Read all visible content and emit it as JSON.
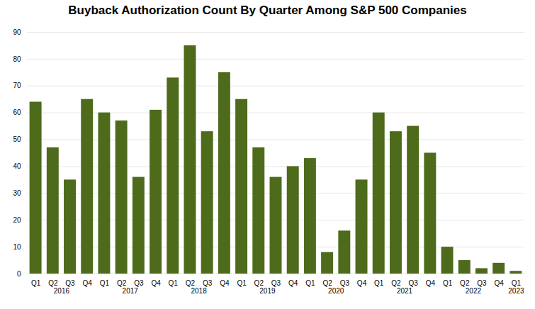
{
  "chart_data": {
    "type": "bar",
    "title": "Buyback Authorization Count By Quarter Among S&P 500 Companies",
    "categories": [
      "Q1",
      "Q2",
      "Q3",
      "Q4",
      "Q1",
      "Q2",
      "Q3",
      "Q4",
      "Q1",
      "Q2",
      "Q3",
      "Q4",
      "Q1",
      "Q2",
      "Q3",
      "Q4",
      "Q1",
      "Q2",
      "Q3",
      "Q4",
      "Q1",
      "Q2",
      "Q3",
      "Q4",
      "Q1",
      "Q2",
      "Q3",
      "Q4",
      "Q1"
    ],
    "values": [
      64,
      47,
      35,
      65,
      60,
      57,
      36,
      61,
      73,
      85,
      53,
      75,
      65,
      47,
      36,
      40,
      43,
      8,
      16,
      35,
      60,
      53,
      55,
      45,
      10,
      5,
      2,
      4,
      1
    ],
    "annotations": [
      "2016",
      "2017",
      "2018",
      "2019",
      "2020",
      "2021",
      "2022",
      "2023"
    ],
    "color": "#4d6b1a",
    "ylim": [
      0,
      90
    ],
    "yticks": [
      0,
      10,
      20,
      30,
      40,
      50,
      60,
      70,
      80,
      90
    ],
    "grid": true
  }
}
